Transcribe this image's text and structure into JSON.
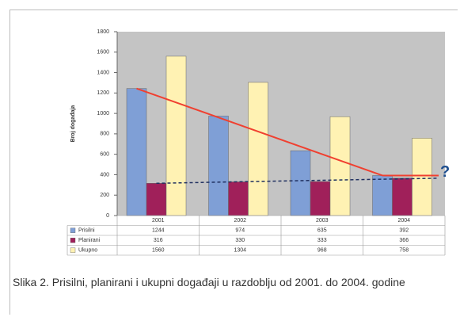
{
  "chart_data": {
    "type": "bar",
    "y_label": "Broj događaja",
    "categories": [
      "2001",
      "2002",
      "2003",
      "2004"
    ],
    "series": [
      {
        "name": "Prisilni",
        "color": "#7f9fd6",
        "values": [
          1244,
          974,
          635,
          392
        ]
      },
      {
        "name": "Planirani",
        "color": "#a0205a",
        "values": [
          316,
          330,
          333,
          366
        ]
      },
      {
        "name": "Ukupno",
        "color": "#fff2b3",
        "values": [
          1560,
          1304,
          968,
          758
        ]
      }
    ],
    "ylim": [
      0,
      1800
    ],
    "yticks": [
      0,
      200,
      400,
      600,
      800,
      1000,
      1200,
      1400,
      1600,
      1800
    ],
    "grid": false,
    "annotation": "?",
    "caption": "Slika 2. Prisilni, planirani i ukupni događaji u razdoblju od 2001. do 2004. godine"
  }
}
